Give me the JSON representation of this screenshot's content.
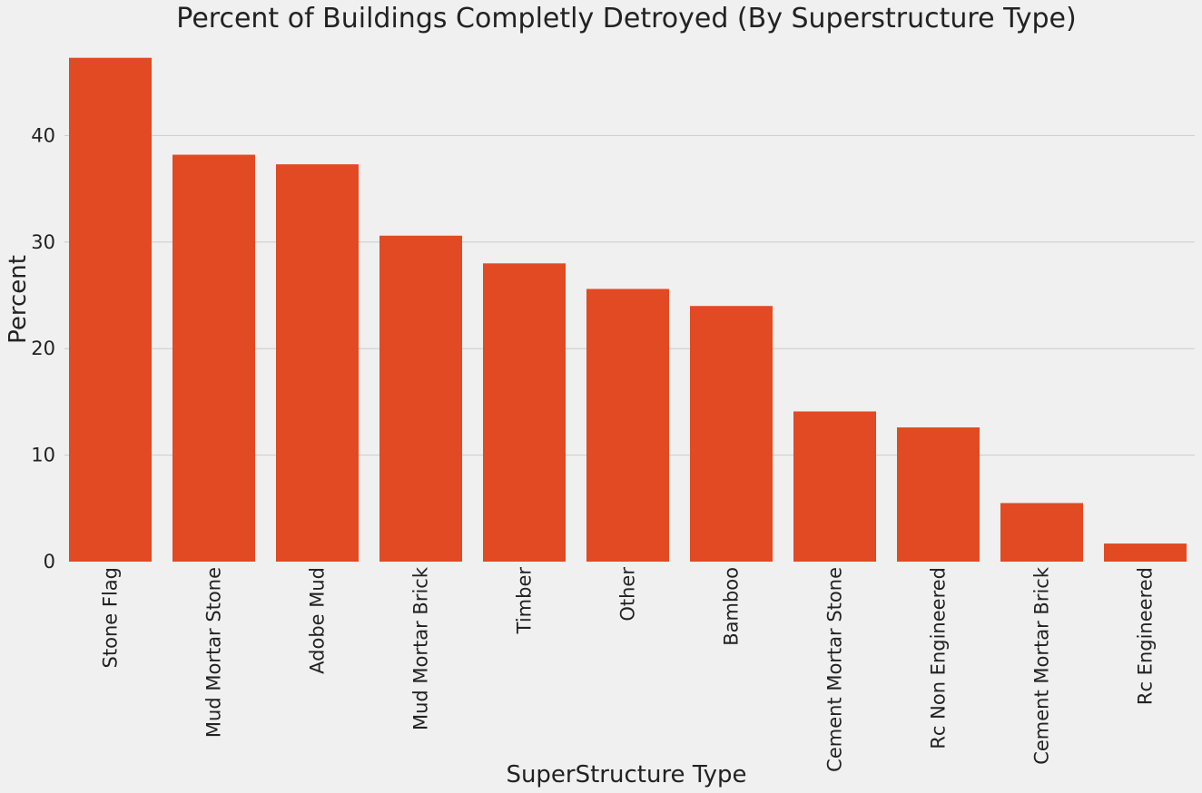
{
  "chart_data": {
    "type": "bar",
    "title": "Percent of Buildings Completly Detroyed (By Superstructure Type)",
    "xlabel": "SuperStructure Type",
    "ylabel": "Percent",
    "categories": [
      "Stone Flag",
      "Mud Mortar Stone",
      "Adobe Mud",
      "Mud Mortar Brick",
      "Timber",
      "Other",
      "Bamboo",
      "Cement Mortar Stone",
      "Rc Non Engineered",
      "Cement Mortar Brick",
      "Rc Engineered"
    ],
    "values": [
      47.3,
      38.2,
      37.3,
      30.6,
      28.0,
      25.6,
      24.0,
      14.1,
      12.6,
      5.5,
      1.7
    ],
    "yticks": [
      0,
      10,
      20,
      30,
      40
    ],
    "ylim": [
      0,
      47.3
    ],
    "grid": "horizontal",
    "bar_color": "#e24a24",
    "background_color": "#f0f0f0",
    "grid_color": "#cbcbcb"
  }
}
